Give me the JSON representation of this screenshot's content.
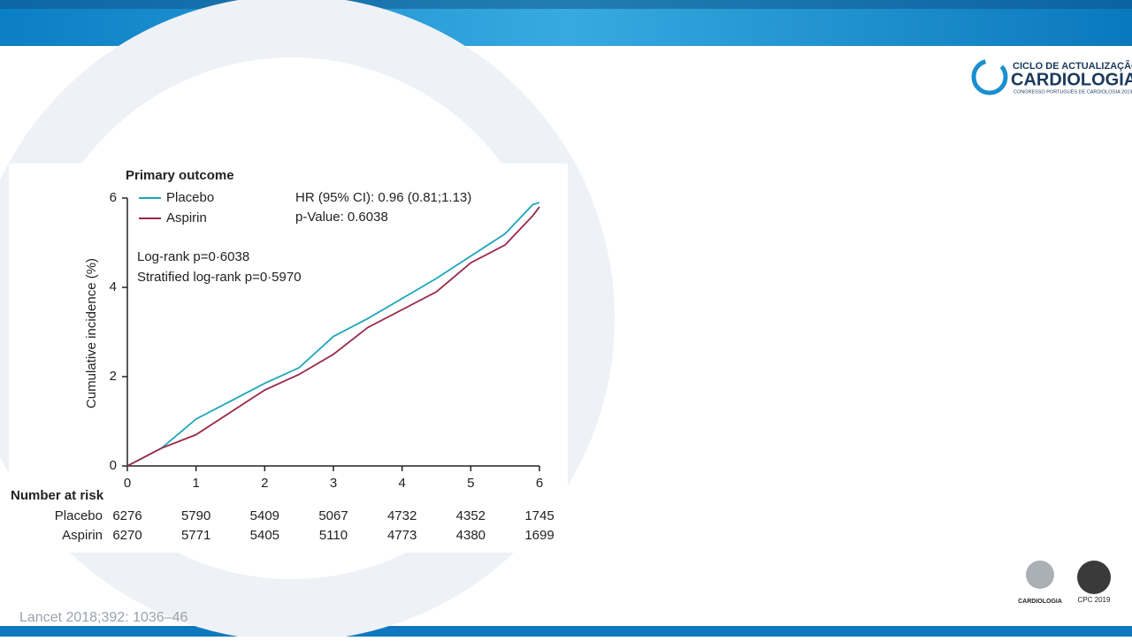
{
  "chart_data": {
    "type": "line",
    "title": "Primary outcome",
    "ylabel": "Cumulative incidence (%)",
    "x": [
      0,
      0.5,
      1,
      1.5,
      2,
      2.5,
      3,
      3.5,
      4,
      4.5,
      5,
      5.5,
      5.9,
      6
    ],
    "series": [
      {
        "name": "Placebo",
        "color": "#1ea5b9",
        "values": [
          0,
          0.4,
          1.05,
          1.45,
          1.85,
          2.2,
          2.9,
          3.3,
          3.75,
          4.2,
          4.7,
          5.2,
          5.85,
          5.9
        ]
      },
      {
        "name": "Aspirin",
        "color": "#9b2747",
        "values": [
          0,
          0.4,
          0.7,
          1.2,
          1.7,
          2.05,
          2.5,
          3.1,
          3.5,
          3.9,
          4.55,
          4.95,
          5.6,
          5.8
        ]
      }
    ],
    "xlim": [
      0,
      6
    ],
    "ylim": [
      0,
      6
    ],
    "xticks": [
      0,
      1,
      2,
      3,
      4,
      5,
      6
    ],
    "yticks": [
      0,
      2,
      4,
      6
    ],
    "legend": "upper left",
    "annotations": [
      "HR (95% CI):  0.96 (0.81;1.13)",
      "p-Value: 0.6038",
      "Log-rank p=0·6038",
      "Stratified log-rank p=0·5970"
    ],
    "risk_table": {
      "title": "Number at risk",
      "rows": [
        {
          "name": "Placebo",
          "values": [
            "6276",
            "5790",
            "5409",
            "5067",
            "4732",
            "4352",
            "1745"
          ]
        },
        {
          "name": "Aspirin",
          "values": [
            "6270",
            "5771",
            "5405",
            "5110",
            "4773",
            "4380",
            "1699"
          ]
        }
      ]
    }
  },
  "slide": {
    "citation": "Lancet 2018;392: 1036–46",
    "logo": {
      "line1": "CICLO DE ACTUALIZAÇÃO",
      "line2": "CARDIOLOGIA",
      "line3": "CONGRESSO PORTUGUÊS DE CARDIOLOGIA 2019"
    },
    "footer_logos": {
      "spc": "CARDIOLOGIA",
      "cpc": "CPC 2019"
    }
  }
}
